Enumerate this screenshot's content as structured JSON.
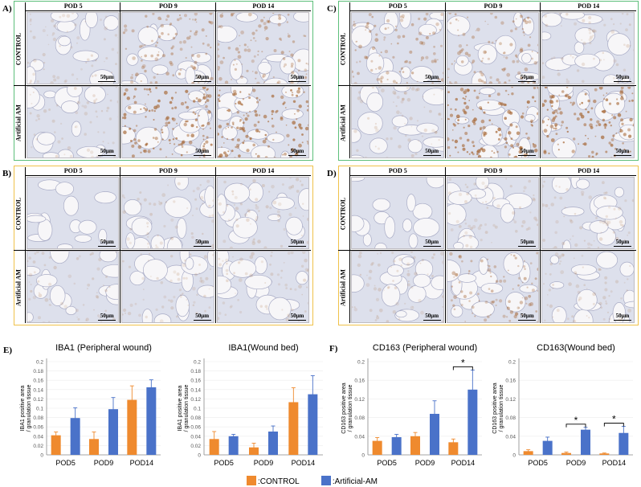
{
  "panels": [
    {
      "label": "A)",
      "border_color": "#5cbf7a",
      "columns": [
        "POD 5",
        "POD 9",
        "POD 14"
      ],
      "rows": [
        "CONTROL",
        "Artificial AM"
      ],
      "stain": [
        [
          "light",
          "medium",
          "medium"
        ],
        [
          "light",
          "heavy",
          "heavy"
        ]
      ]
    },
    {
      "label": "B)",
      "border_color": "#f0c24a",
      "columns": [
        "POD 5",
        "POD 9",
        "POD 14"
      ],
      "rows": [
        "CONTROL",
        "Artificial AM"
      ],
      "stain": [
        [
          "none",
          "light",
          "light"
        ],
        [
          "light",
          "light",
          "light"
        ]
      ]
    },
    {
      "label": "C)",
      "border_color": "#5cbf7a",
      "columns": [
        "POD 5",
        "POD 9",
        "POD 14"
      ],
      "rows": [
        "CONTROL",
        "Artificial AM"
      ],
      "stain": [
        [
          "medium",
          "medium",
          "light"
        ],
        [
          "light",
          "heavy",
          "heavy"
        ]
      ]
    },
    {
      "label": "D)",
      "border_color": "#f0c24a",
      "columns": [
        "POD 5",
        "POD 9",
        "POD 14"
      ],
      "rows": [
        "CONTROL",
        "Artificial AM"
      ],
      "stain": [
        [
          "none",
          "light",
          "light"
        ],
        [
          "light",
          "medium",
          "light"
        ]
      ]
    }
  ],
  "scale_bar_label": "50μm",
  "section_labels": {
    "e": "E)",
    "f": "F)"
  },
  "colors": {
    "control": "#ef8a2e",
    "artificial": "#4a72c9",
    "micro_bg": "#dde0ec",
    "stain": "#a4622e"
  },
  "chart_data": [
    {
      "type": "bar",
      "title": "IBA1 (Peripheral wound)",
      "ylabel_line1": "IBA1 positive area",
      "ylabel_line2": "/ granulation tissue",
      "categories": [
        "POD5",
        "POD9",
        "POD14"
      ],
      "ylim": [
        0,
        0.2
      ],
      "yticks": [
        "0",
        "0.02",
        "0.04",
        "0.06",
        "0.08",
        "0.1",
        "0.12",
        "0.14",
        "0.16",
        "0.18",
        "0.2"
      ],
      "series": [
        {
          "name": ":CONTROL",
          "values": [
            0.042,
            0.034,
            0.118
          ],
          "errors": [
            0.007,
            0.015,
            0.03
          ]
        },
        {
          "name": ":Artificial-AM",
          "values": [
            0.079,
            0.098,
            0.145
          ],
          "errors": [
            0.022,
            0.025,
            0.016
          ]
        }
      ],
      "significance": []
    },
    {
      "type": "bar",
      "title": "IBA1(Wound bed)",
      "ylabel_line1": "IBA1 positive area",
      "ylabel_line2": "/ granulation tissue",
      "categories": [
        "POD5",
        "POD9",
        "POD14"
      ],
      "ylim": [
        0,
        0.2
      ],
      "yticks": [
        "0",
        "0.02",
        "0.04",
        "0.06",
        "0.08",
        "0.1",
        "0.12",
        "0.14",
        "0.16",
        "0.18",
        "0.2"
      ],
      "series": [
        {
          "name": ":CONTROL",
          "values": [
            0.034,
            0.016,
            0.113
          ],
          "errors": [
            0.016,
            0.009,
            0.031
          ]
        },
        {
          "name": ":Artificial-AM",
          "values": [
            0.04,
            0.05,
            0.13
          ],
          "errors": [
            0.004,
            0.012,
            0.04
          ]
        }
      ],
      "significance": []
    },
    {
      "type": "bar",
      "title": "CD163 (Peripheral wound)",
      "ylabel_line1": "CD163 positive area",
      "ylabel_line2": "/ granulation tissue",
      "categories": [
        "POD5",
        "POD9",
        "POD14"
      ],
      "ylim": [
        0,
        0.2
      ],
      "yticks": [
        "0",
        "0.04",
        "0.08",
        "0.12",
        "0.16",
        "0.2"
      ],
      "series": [
        {
          "name": ":CONTROL",
          "values": [
            0.03,
            0.04,
            0.027
          ],
          "errors": [
            0.007,
            0.008,
            0.007
          ]
        },
        {
          "name": ":Artificial-AM",
          "values": [
            0.038,
            0.088,
            0.14
          ],
          "errors": [
            0.006,
            0.028,
            0.042
          ]
        }
      ],
      "significance": [
        {
          "category": "POD14",
          "label": "*"
        }
      ]
    },
    {
      "type": "bar",
      "title": "CD163(Wound bed)",
      "ylabel_line1": "CD163 positive area",
      "ylabel_line2": "/ granulation tissue",
      "categories": [
        "POD5",
        "POD9",
        "POD14"
      ],
      "ylim": [
        0,
        0.2
      ],
      "yticks": [
        "0",
        "0.04",
        "0.08",
        "0.12",
        "0.16",
        "0.2"
      ],
      "series": [
        {
          "name": ":CONTROL",
          "values": [
            0.008,
            0.004,
            0.003
          ],
          "errors": [
            0.003,
            0.002,
            0.001
          ]
        },
        {
          "name": ":Artificial-AM",
          "values": [
            0.03,
            0.054,
            0.047
          ],
          "errors": [
            0.008,
            0.005,
            0.014
          ]
        }
      ],
      "significance": [
        {
          "category": "POD9",
          "label": "*"
        },
        {
          "category": "POD14",
          "label": "*"
        }
      ]
    }
  ],
  "legend": {
    "control_label": ":CONTROL",
    "artificial_label": ":Artificial-AM"
  }
}
